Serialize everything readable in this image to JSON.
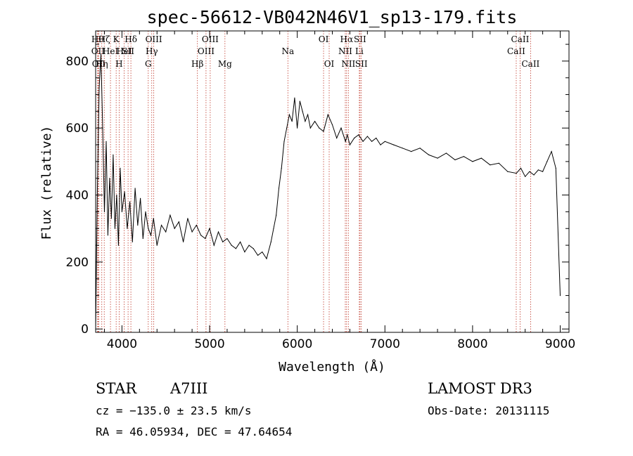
{
  "chart_data": {
    "type": "line",
    "title": "spec-56612-VB042N46V1_sp13-179.fits",
    "xlabel": "Wavelength (Å)",
    "ylabel": "Flux (relative)",
    "xlim": [
      3700,
      9100
    ],
    "ylim": [
      -10,
      890
    ],
    "xticks": [
      {
        "value": 4000,
        "label": "4000"
      },
      {
        "value": 5000,
        "label": "5000"
      },
      {
        "value": 6000,
        "label": "6000"
      },
      {
        "value": 7000,
        "label": "7000"
      },
      {
        "value": 8000,
        "label": "8000"
      },
      {
        "value": 9000,
        "label": "9000"
      }
    ],
    "yticks": [
      {
        "value": 0,
        "label": "0"
      },
      {
        "value": 200,
        "label": "200"
      },
      {
        "value": 400,
        "label": "400"
      },
      {
        "value": 600,
        "label": "600"
      },
      {
        "value": 800,
        "label": "800"
      }
    ],
    "series": [
      {
        "name": "flux",
        "color": "#000000",
        "x": [
          3700,
          3720,
          3740,
          3760,
          3780,
          3800,
          3820,
          3840,
          3860,
          3880,
          3900,
          3920,
          3940,
          3960,
          3980,
          4000,
          4030,
          4060,
          4090,
          4120,
          4150,
          4180,
          4210,
          4240,
          4270,
          4300,
          4330,
          4360,
          4400,
          4450,
          4500,
          4550,
          4600,
          4650,
          4700,
          4750,
          4800,
          4850,
          4900,
          4950,
          5000,
          5050,
          5100,
          5150,
          5200,
          5250,
          5300,
          5350,
          5400,
          5450,
          5500,
          5550,
          5600,
          5650,
          5700,
          5730,
          5760,
          5790,
          5820,
          5850,
          5880,
          5910,
          5940,
          5970,
          6000,
          6030,
          6060,
          6090,
          6120,
          6150,
          6200,
          6250,
          6300,
          6350,
          6400,
          6450,
          6500,
          6550,
          6570,
          6600,
          6650,
          6700,
          6750,
          6800,
          6850,
          6900,
          6950,
          7000,
          7100,
          7200,
          7300,
          7400,
          7500,
          7600,
          7700,
          7800,
          7900,
          8000,
          8100,
          8200,
          8300,
          8400,
          8500,
          8550,
          8600,
          8650,
          8700,
          8750,
          8800,
          8850,
          8900,
          8950,
          9000
        ],
        "y": [
          0,
          420,
          720,
          820,
          600,
          350,
          560,
          280,
          450,
          330,
          520,
          300,
          400,
          250,
          480,
          350,
          410,
          300,
          380,
          260,
          420,
          310,
          390,
          270,
          350,
          300,
          280,
          330,
          250,
          310,
          290,
          340,
          300,
          320,
          260,
          330,
          290,
          310,
          280,
          270,
          300,
          250,
          290,
          260,
          270,
          250,
          240,
          260,
          230,
          250,
          240,
          220,
          230,
          210,
          260,
          300,
          340,
          420,
          480,
          560,
          600,
          640,
          620,
          690,
          600,
          680,
          650,
          620,
          640,
          600,
          620,
          600,
          590,
          640,
          610,
          570,
          600,
          560,
          580,
          550,
          570,
          580,
          560,
          575,
          560,
          570,
          550,
          560,
          550,
          540,
          530,
          540,
          520,
          510,
          525,
          505,
          515,
          500,
          510,
          490,
          495,
          470,
          465,
          480,
          455,
          470,
          460,
          475,
          470,
          500,
          530,
          480,
          100
        ]
      }
    ],
    "line_markers": [
      {
        "wavelength": 3722,
        "label": "Hθ",
        "row": 0
      },
      {
        "wavelength": 3727,
        "label": "OII",
        "row": 1
      },
      {
        "wavelength": 3735,
        "label": "OII",
        "row": 2
      },
      {
        "wavelength": 3770,
        "label": "Hη",
        "row": 2
      },
      {
        "wavelength": 3798,
        "label": "Hζ",
        "row": 0
      },
      {
        "wavelength": 3869,
        "label": "HeI",
        "row": 1
      },
      {
        "wavelength": 3934,
        "label": "K",
        "row": 0
      },
      {
        "wavelength": 3968,
        "label": "H",
        "row": 2
      },
      {
        "wavelength": 4026,
        "label": "HeI",
        "row": 1
      },
      {
        "wavelength": 4070,
        "label": "SII",
        "row": 1
      },
      {
        "wavelength": 4102,
        "label": "Hδ",
        "row": 0
      },
      {
        "wavelength": 4300,
        "label": "G",
        "row": 2
      },
      {
        "wavelength": 4340,
        "label": "Hγ",
        "row": 1
      },
      {
        "wavelength": 4363,
        "label": "OIII",
        "row": 0
      },
      {
        "wavelength": 4861,
        "label": "Hβ",
        "row": 2
      },
      {
        "wavelength": 4959,
        "label": "OIII",
        "row": 1
      },
      {
        "wavelength": 5007,
        "label": "OIII",
        "row": 0
      },
      {
        "wavelength": 5175,
        "label": "Mg",
        "row": 2
      },
      {
        "wavelength": 5893,
        "label": "Na",
        "row": 1
      },
      {
        "wavelength": 6300,
        "label": "OI",
        "row": 0
      },
      {
        "wavelength": 6364,
        "label": "OI",
        "row": 2
      },
      {
        "wavelength": 6548,
        "label": "NII",
        "row": 1
      },
      {
        "wavelength": 6563,
        "label": "Hα",
        "row": 0
      },
      {
        "wavelength": 6583,
        "label": "NII",
        "row": 2
      },
      {
        "wavelength": 6708,
        "label": "Li",
        "row": 1
      },
      {
        "wavelength": 6716,
        "label": "SII",
        "row": 0
      },
      {
        "wavelength": 6731,
        "label": "SII",
        "row": 2
      },
      {
        "wavelength": 8498,
        "label": "CaII",
        "row": 1
      },
      {
        "wavelength": 8542,
        "label": "CaII",
        "row": 0
      },
      {
        "wavelength": 8662,
        "label": "CaII",
        "row": 2
      }
    ]
  },
  "info": {
    "object_class": "STAR",
    "subclass": "A7III",
    "survey": "LAMOST DR3",
    "redshift_line": "cz = −135.0 ± 23.5 km/s",
    "obs_date": "Obs-Date: 20131115",
    "coords": "RA =  46.05934, DEC =  47.64654"
  },
  "colors": {
    "marker_line": "#c0392b",
    "spectrum": "#000000"
  }
}
